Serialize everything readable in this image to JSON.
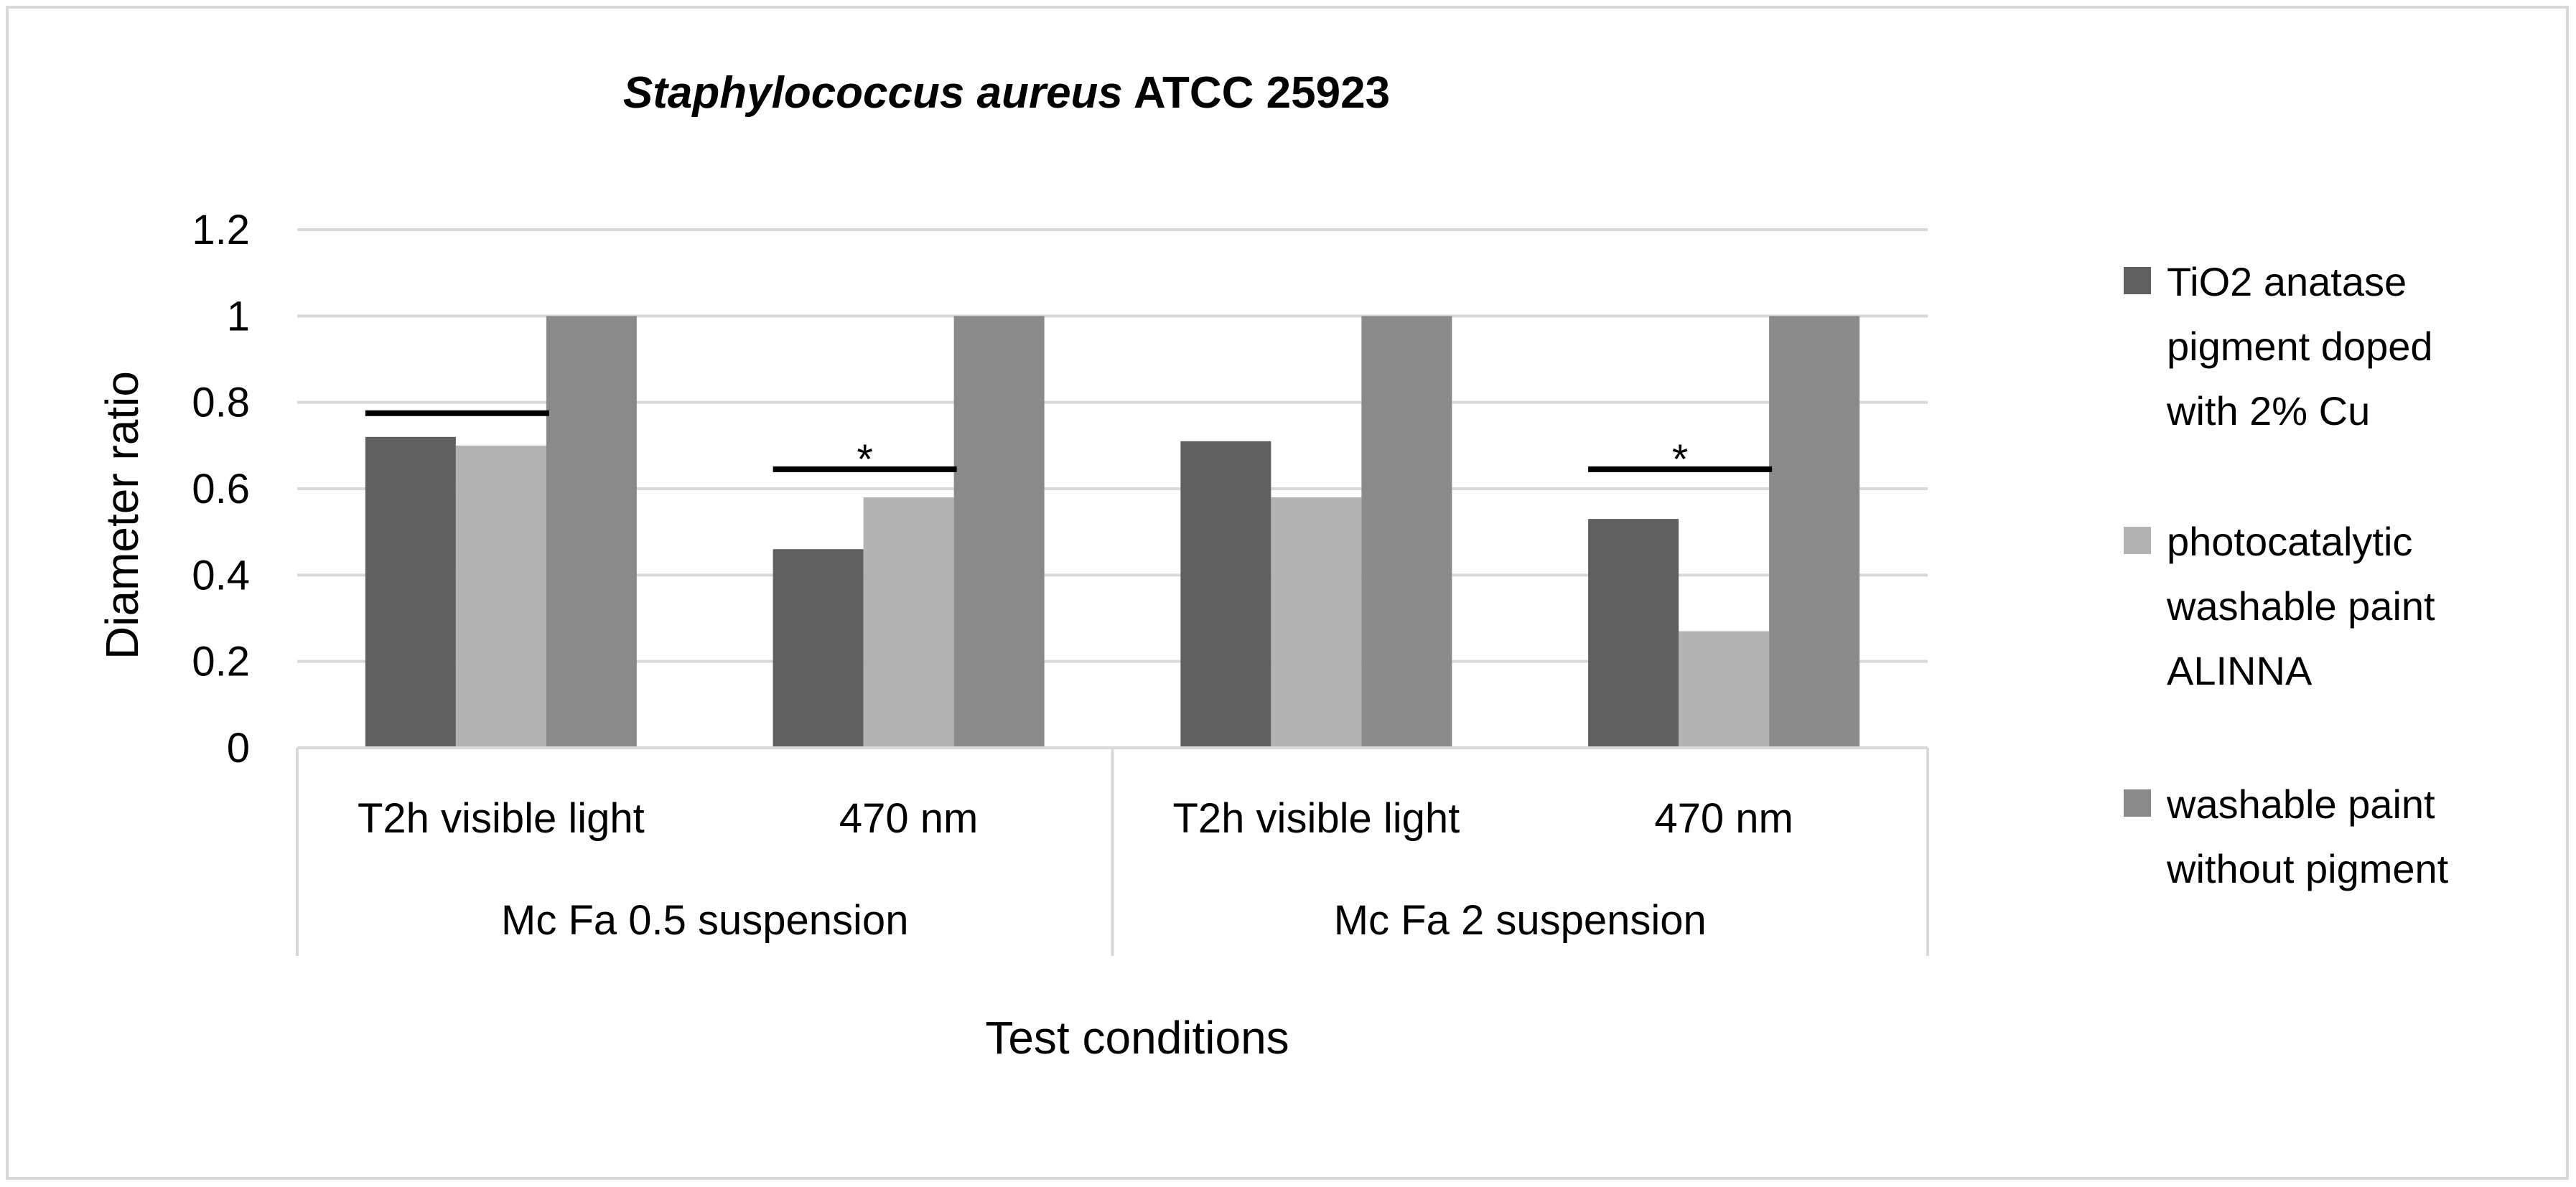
{
  "chart_data": {
    "type": "bar",
    "title": {
      "italic": "Staphylococcus aureus",
      "rest": "ATCC 25923"
    },
    "xlabel": "Test conditions",
    "ylabel": "Diameter ratio",
    "ylim": [
      0,
      1.2
    ],
    "yticks": [
      "0",
      "0.2",
      "0.4",
      "0.6",
      "0.8",
      "1",
      "1.2"
    ],
    "grid": true,
    "legend_position": "right",
    "categories": [
      "T2h visible light",
      "470 nm",
      "T2h visible light",
      "470 nm"
    ],
    "groups": [
      {
        "label": "Mc Fa 0.5 suspension",
        "span": [
          0,
          1
        ]
      },
      {
        "label": "Mc Fa 2 suspension",
        "span": [
          2,
          3
        ]
      }
    ],
    "series": [
      {
        "name": "TiO2 anatase pigment doped with 2% Cu",
        "legend_lines": [
          "TiO2 anatase",
          "pigment doped",
          "with 2% Cu"
        ],
        "color": "#5f5f5f",
        "values": [
          0.72,
          0.46,
          0.71,
          0.53
        ]
      },
      {
        "name": "photocatalytic washable paint ALINNA",
        "legend_lines": [
          "photocatalytic",
          "washable paint",
          "ALINNA"
        ],
        "color": "#b3b3b3",
        "values": [
          0.7,
          0.58,
          0.58,
          0.27
        ]
      },
      {
        "name": "washable paint without pigment",
        "legend_lines": [
          "washable paint",
          "without pigment"
        ],
        "color": "#8a8a8a",
        "values": [
          1,
          1,
          1,
          1
        ]
      }
    ],
    "annotations": [
      {
        "category": 0,
        "line_y": 0.775,
        "marker": ""
      },
      {
        "category": 1,
        "line_y": 0.645,
        "marker": "*"
      },
      {
        "category": 3,
        "line_y": 0.645,
        "marker": "*"
      }
    ]
  }
}
